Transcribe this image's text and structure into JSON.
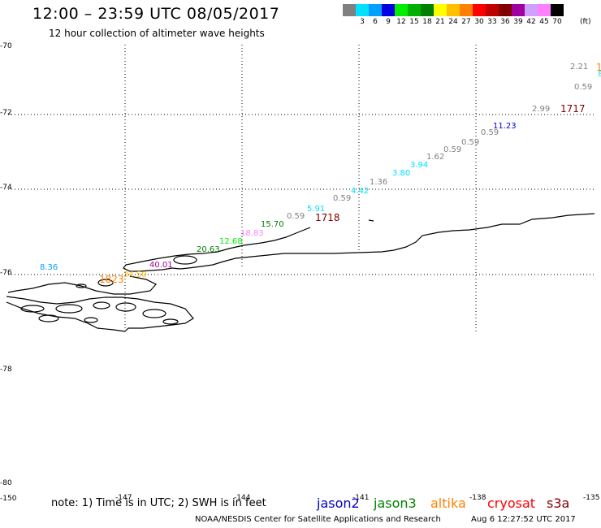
{
  "header": {
    "title": "12:00 – 23:59 UTC 08/05/2017",
    "subtitle": "12 hour collection of altimeter wave heights"
  },
  "legend": {
    "colors": [
      "#808080",
      "#00e0ff",
      "#00a0ff",
      "#0000e0",
      "#00ee00",
      "#00b000",
      "#008000",
      "#ffff00",
      "#ffc000",
      "#ff8000",
      "#ff0000",
      "#c00000",
      "#800000",
      "#a000a0",
      "#d0a0ff",
      "#ff80ff",
      "#000000"
    ],
    "labels": [
      "",
      "3",
      "6",
      "9",
      "12",
      "15",
      "18",
      "21",
      "24",
      "27",
      "30",
      "33",
      "36",
      "39",
      "42",
      "45",
      "70"
    ],
    "unit": "(ft)"
  },
  "axes": {
    "lat_labels": [
      "-70",
      "-72",
      "-74",
      "-76",
      "-78",
      "-80"
    ],
    "lon_labels": [
      "-150",
      "-147",
      "-144",
      "-141",
      "-138",
      "-135"
    ]
  },
  "observations": [
    {
      "text": "2.21",
      "color": "#808080"
    },
    {
      "text": "1",
      "color": "#ff8000"
    },
    {
      "text": "8",
      "color": "#00e0ff"
    },
    {
      "text": "0.59",
      "color": "#808080"
    },
    {
      "text": "2.99",
      "color": "#808080"
    },
    {
      "text": "1717",
      "color": "#800000"
    },
    {
      "text": "11.23",
      "color": "#0000e0"
    },
    {
      "text": "0.59",
      "color": "#808080"
    },
    {
      "text": "0.59",
      "color": "#808080"
    },
    {
      "text": "0.59",
      "color": "#808080"
    },
    {
      "text": "1.62",
      "color": "#808080"
    },
    {
      "text": "3.94",
      "color": "#00e0ff"
    },
    {
      "text": "3.80",
      "color": "#00e0ff"
    },
    {
      "text": "1.36",
      "color": "#808080"
    },
    {
      "text": "4.42",
      "color": "#00e0ff"
    },
    {
      "text": "0.59",
      "color": "#808080"
    },
    {
      "text": "5.91",
      "color": "#00e0ff"
    },
    {
      "text": "0.59",
      "color": "#808080"
    },
    {
      "text": "1718",
      "color": "#800000"
    },
    {
      "text": "15.70",
      "color": "#008000"
    },
    {
      "text": "18.83",
      "color": "#ff80ff"
    },
    {
      "text": "12.68",
      "color": "#00ee00"
    },
    {
      "text": "20.63",
      "color": "#008000"
    },
    {
      "text": "40.01",
      "color": "#a000a0"
    },
    {
      "text": "8.36",
      "color": "#00a0ff"
    },
    {
      "text": "1823",
      "color": "#ff8000"
    },
    {
      "text": "34.50",
      "color": "#ffc000"
    }
  ],
  "footer": {
    "note": "note: 1) Time is in UTC; 2) SWH is in feet",
    "satellites": [
      {
        "name": "jason2",
        "color": "#0000c0"
      },
      {
        "name": "jason3",
        "color": "#008000"
      },
      {
        "name": "altika",
        "color": "#ff8000"
      },
      {
        "name": "cryosat",
        "color": "#ff0000"
      },
      {
        "name": "s3a",
        "color": "#800000"
      }
    ],
    "credit": "NOAA/NESDIS Center for Satellite Applications and Research",
    "timestamp": "Aug  6 12:27:52 UTC 2017"
  }
}
